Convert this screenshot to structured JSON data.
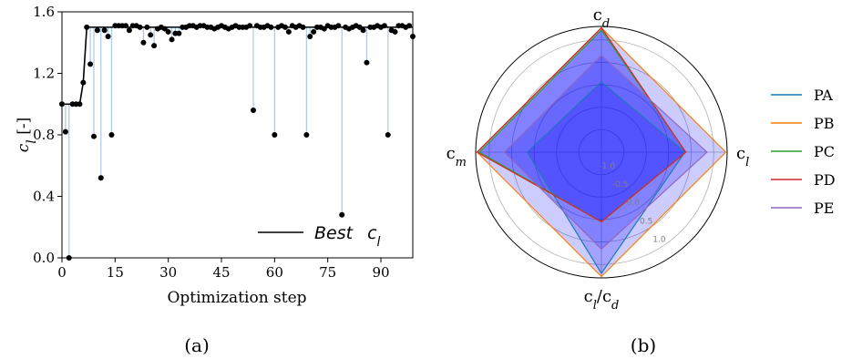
{
  "chart_data": [
    {
      "type": "scatter",
      "caption": "(a)",
      "xlabel": "Optimization step",
      "ylabel_main": "c",
      "ylabel_sub": "l",
      "ylabel_suffix": " [-]",
      "xlim": [
        0,
        99
      ],
      "ylim": [
        0.0,
        1.6
      ],
      "xticks": [
        0,
        15,
        30,
        45,
        60,
        75,
        90
      ],
      "yticks": [
        "0.0",
        "0.4",
        "0.8",
        "1.2",
        "1.6"
      ],
      "legend": {
        "label_main": "Best",
        "label_sub": "c",
        "label_sub2": "l",
        "placement": "bottom-right"
      },
      "colors": {
        "points": "#000000",
        "best_line": "#000000",
        "stems": "#a8c8e4"
      },
      "points": [
        [
          0,
          1.0
        ],
        [
          1,
          0.82
        ],
        [
          2,
          0.0
        ],
        [
          3,
          1.0
        ],
        [
          4,
          1.0
        ],
        [
          5,
          1.0
        ],
        [
          6,
          1.14
        ],
        [
          7,
          1.5
        ],
        [
          8,
          1.26
        ],
        [
          9,
          0.79
        ],
        [
          10,
          1.48
        ],
        [
          11,
          0.52
        ],
        [
          12,
          1.48
        ],
        [
          13,
          1.44
        ],
        [
          14,
          0.8
        ],
        [
          15,
          1.51
        ],
        [
          16,
          1.51
        ],
        [
          17,
          1.51
        ],
        [
          18,
          1.51
        ],
        [
          19,
          1.48
        ],
        [
          20,
          1.51
        ],
        [
          21,
          1.51
        ],
        [
          22,
          1.5
        ],
        [
          23,
          1.4
        ],
        [
          24,
          1.5
        ],
        [
          25,
          1.45
        ],
        [
          26,
          1.38
        ],
        [
          27,
          1.49
        ],
        [
          28,
          1.5
        ],
        [
          29,
          1.49
        ],
        [
          30,
          1.47
        ],
        [
          31,
          1.42
        ],
        [
          32,
          1.46
        ],
        [
          33,
          1.46
        ],
        [
          34,
          1.5
        ],
        [
          35,
          1.5
        ],
        [
          36,
          1.51
        ],
        [
          37,
          1.51
        ],
        [
          38,
          1.5
        ],
        [
          39,
          1.51
        ],
        [
          40,
          1.51
        ],
        [
          41,
          1.5
        ],
        [
          42,
          1.5
        ],
        [
          43,
          1.49
        ],
        [
          44,
          1.5
        ],
        [
          45,
          1.51
        ],
        [
          46,
          1.5
        ],
        [
          47,
          1.49
        ],
        [
          48,
          1.5
        ],
        [
          49,
          1.51
        ],
        [
          50,
          1.5
        ],
        [
          51,
          1.5
        ],
        [
          52,
          1.5
        ],
        [
          53,
          1.51
        ],
        [
          54,
          0.96
        ],
        [
          55,
          1.51
        ],
        [
          56,
          1.5
        ],
        [
          57,
          1.5
        ],
        [
          58,
          1.51
        ],
        [
          59,
          1.5
        ],
        [
          60,
          0.8
        ],
        [
          61,
          1.5
        ],
        [
          62,
          1.51
        ],
        [
          63,
          1.5
        ],
        [
          64,
          1.47
        ],
        [
          65,
          1.51
        ],
        [
          66,
          1.5
        ],
        [
          67,
          1.51
        ],
        [
          68,
          1.5
        ],
        [
          69,
          0.8
        ],
        [
          70,
          1.44
        ],
        [
          71,
          1.47
        ],
        [
          72,
          1.5
        ],
        [
          73,
          1.5
        ],
        [
          74,
          1.49
        ],
        [
          75,
          1.51
        ],
        [
          76,
          1.5
        ],
        [
          77,
          1.5
        ],
        [
          78,
          1.51
        ],
        [
          79,
          0.28
        ],
        [
          80,
          1.5
        ],
        [
          81,
          1.49
        ],
        [
          82,
          1.5
        ],
        [
          83,
          1.51
        ],
        [
          84,
          1.5
        ],
        [
          85,
          1.48
        ],
        [
          86,
          1.27
        ],
        [
          87,
          1.5
        ],
        [
          88,
          1.5
        ],
        [
          89,
          1.51
        ],
        [
          90,
          1.5
        ],
        [
          91,
          1.51
        ],
        [
          92,
          0.8
        ],
        [
          93,
          1.48
        ],
        [
          94,
          1.47
        ],
        [
          95,
          1.51
        ],
        [
          96,
          1.51
        ],
        [
          97,
          1.5
        ],
        [
          98,
          1.51
        ],
        [
          99,
          1.44
        ]
      ],
      "best": [
        [
          0,
          1.0
        ],
        [
          5,
          1.0
        ],
        [
          6,
          1.14
        ],
        [
          7,
          1.5
        ],
        [
          99,
          1.5
        ]
      ]
    },
    {
      "type": "radar",
      "caption": "(b)",
      "axes": [
        {
          "main": "c",
          "sub": "d",
          "suffix": ""
        },
        {
          "main": "c",
          "sub": "l",
          "suffix": ""
        },
        {
          "main": "c",
          "sub": "l",
          "suffix": "/c",
          "sub2": "d"
        },
        {
          "main": "c",
          "sub": "m",
          "suffix": ""
        }
      ],
      "rlim": [
        -1.5,
        1.3
      ],
      "rticks": [
        "-1.0",
        "-0.5",
        "0.0",
        "0.5",
        "1.0"
      ],
      "rtick_values": [
        -1.0,
        -0.5,
        0.0,
        0.5,
        1.0
      ],
      "grid": true,
      "fill_color": "#0000ff",
      "legend_placement": "right",
      "series": [
        {
          "name": "PA",
          "color": "#1f77b4",
          "values": [
            0.06,
            0.36,
            1.2,
            0.15
          ]
        },
        {
          "name": "PB",
          "color": "#ff7f0e",
          "values": [
            1.27,
            1.27,
            1.27,
            1.27
          ]
        },
        {
          "name": "PC",
          "color": "#2ca02c",
          "values": [
            1.22,
            0.38,
            0.05,
            1.22
          ]
        },
        {
          "name": "PD",
          "color": "#d62728",
          "values": [
            1.27,
            0.38,
            0.05,
            1.27
          ]
        },
        {
          "name": "PE",
          "color": "#9467bd",
          "values": [
            0.66,
            0.85,
            0.66,
            0.66
          ]
        }
      ]
    }
  ]
}
